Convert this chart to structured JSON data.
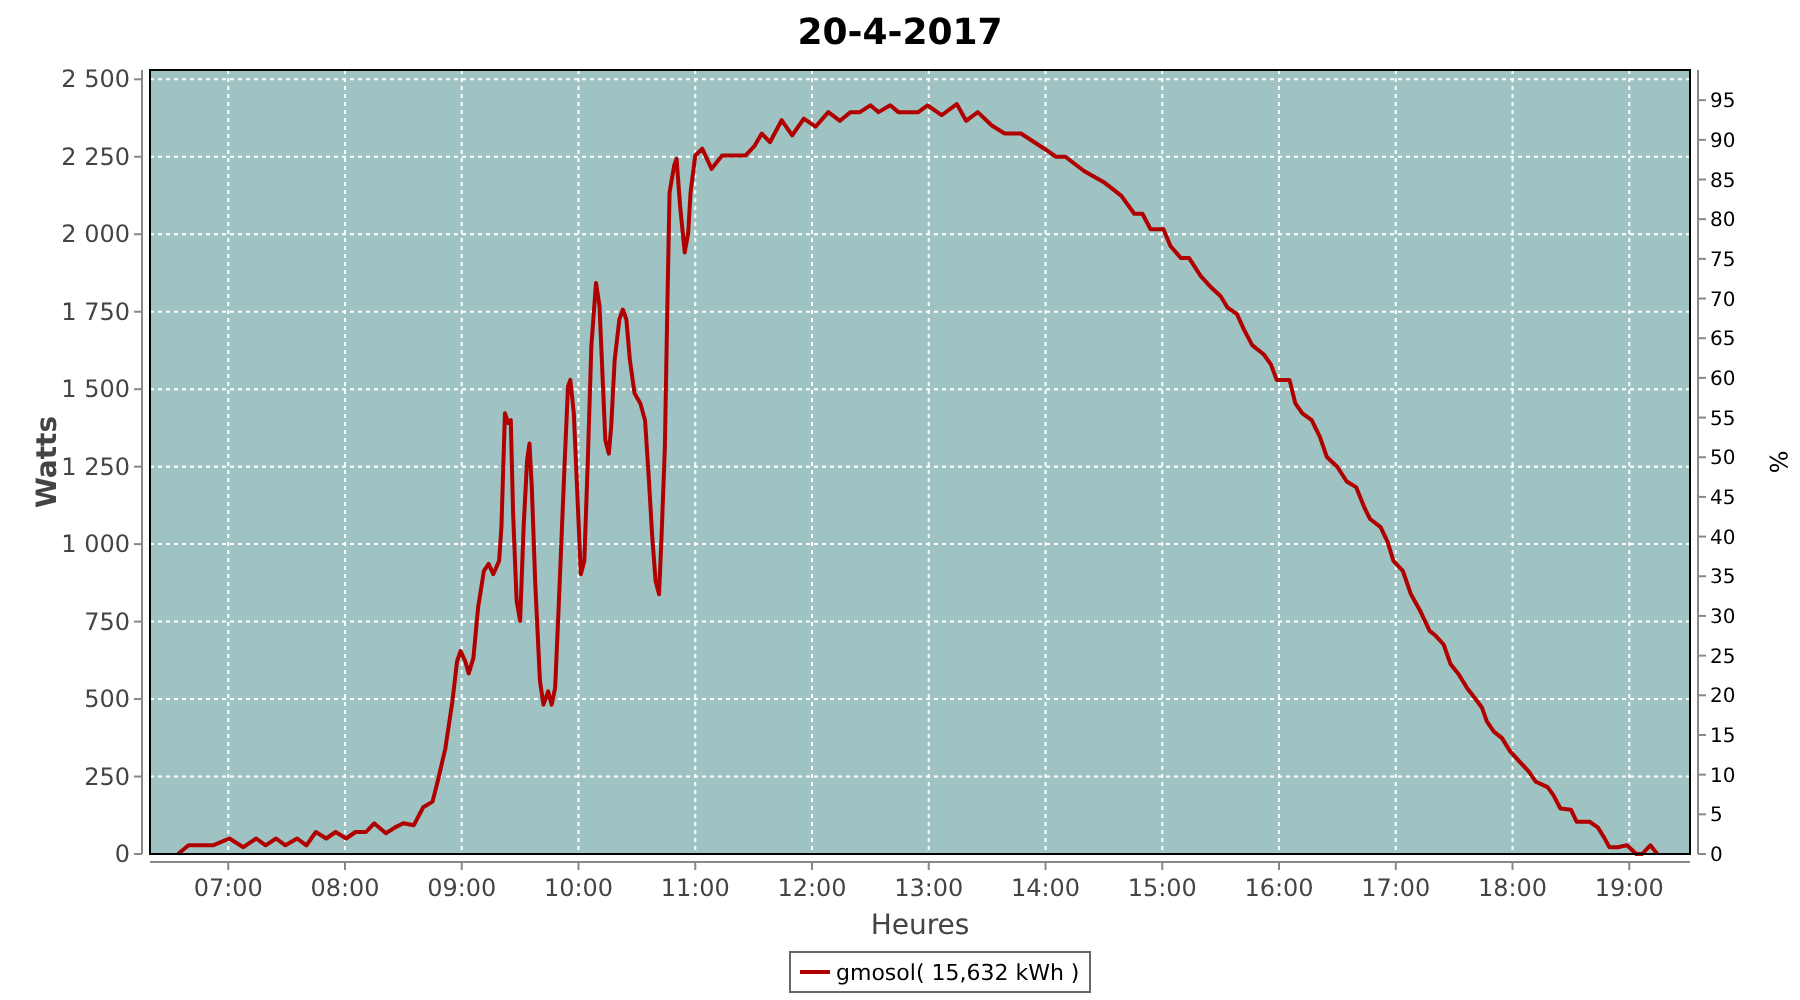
{
  "chart_data": {
    "type": "line",
    "title": "20-4-2017",
    "xlabel": "Heures",
    "ylabel": "Watts",
    "y2label": "%",
    "xlim": [
      6.33,
      19.52
    ],
    "xticks": [
      {
        "value": 7,
        "label": "07:00"
      },
      {
        "value": 8,
        "label": "08:00"
      },
      {
        "value": 9,
        "label": "09:00"
      },
      {
        "value": 10,
        "label": "10:00"
      },
      {
        "value": 11,
        "label": "11:00"
      },
      {
        "value": 12,
        "label": "12:00"
      },
      {
        "value": 13,
        "label": "13:00"
      },
      {
        "value": 14,
        "label": "14:00"
      },
      {
        "value": 15,
        "label": "15:00"
      },
      {
        "value": 16,
        "label": "16:00"
      },
      {
        "value": 17,
        "label": "17:00"
      },
      {
        "value": 18,
        "label": "18:00"
      },
      {
        "value": 19,
        "label": "19:00"
      }
    ],
    "ylim": [
      0,
      2530
    ],
    "yticks": [
      0,
      250,
      500,
      750,
      {
        "value": 1000,
        "label": "1 000"
      },
      {
        "value": 1250,
        "label": "1 250"
      },
      {
        "value": 1500,
        "label": "1 500"
      },
      {
        "value": 1750,
        "label": "1 750"
      },
      {
        "value": 2000,
        "label": "2 000"
      },
      {
        "value": 2250,
        "label": "2 250"
      },
      {
        "value": 2500,
        "label": "2 500"
      }
    ],
    "y2lim": [
      0,
      98.8
    ],
    "y2ticks": [
      0,
      5,
      10,
      15,
      20,
      25,
      30,
      35,
      40,
      45,
      50,
      55,
      60,
      65,
      70,
      75,
      80,
      85,
      90,
      95
    ],
    "grid": true,
    "legend": "bottom",
    "line_style": "solid",
    "marker": "none",
    "series": [
      {
        "name": "gmosol( 15,632 kWh )",
        "color": "#b00000",
        "x": [
          6.57,
          6.66,
          6.87,
          7.01,
          7.13,
          7.24,
          7.32,
          7.41,
          7.49,
          7.59,
          7.67,
          7.75,
          7.84,
          7.92,
          8.01,
          8.09,
          8.18,
          8.25,
          8.35,
          8.43,
          8.5,
          8.59,
          8.67,
          8.75,
          8.8,
          8.86,
          8.92,
          8.96,
          8.99,
          9.03,
          9.06,
          9.1,
          9.14,
          9.19,
          9.23,
          9.27,
          9.32,
          9.34,
          9.37,
          9.4,
          9.42,
          9.44,
          9.47,
          9.5,
          9.53,
          9.56,
          9.58,
          9.6,
          9.63,
          9.67,
          9.7,
          9.74,
          9.77,
          9.8,
          9.83,
          9.88,
          9.91,
          9.93,
          9.96,
          9.99,
          10.02,
          10.05,
          10.08,
          10.11,
          10.15,
          10.18,
          10.21,
          10.23,
          10.26,
          10.28,
          10.31,
          10.35,
          10.38,
          10.41,
          10.44,
          10.48,
          10.53,
          10.57,
          10.6,
          10.63,
          10.66,
          10.69,
          10.71,
          10.74,
          10.76,
          10.78,
          10.82,
          10.84,
          10.87,
          10.91,
          10.94,
          10.96,
          11.0,
          11.06,
          11.14,
          11.23,
          11.28,
          11.43,
          11.51,
          11.57,
          11.64,
          11.74,
          11.83,
          11.93,
          12.03,
          12.14,
          12.24,
          12.33,
          12.41,
          12.5,
          12.57,
          12.67,
          12.74,
          12.91,
          12.99,
          13.11,
          13.24,
          13.32,
          13.42,
          13.54,
          13.65,
          13.79,
          13.99,
          14.09,
          14.17,
          14.33,
          14.5,
          14.65,
          14.76,
          14.83,
          14.9,
          15.01,
          15.07,
          15.16,
          15.23,
          15.33,
          15.42,
          15.5,
          15.56,
          15.64,
          15.7,
          15.77,
          15.87,
          15.93,
          15.98,
          16.09,
          16.14,
          16.2,
          16.28,
          16.35,
          16.41,
          16.5,
          16.58,
          16.66,
          16.73,
          16.78,
          16.87,
          16.93,
          16.98,
          17.06,
          17.13,
          17.21,
          17.29,
          17.34,
          17.41,
          17.47,
          17.54,
          17.61,
          17.69,
          17.74,
          17.78,
          17.84,
          17.91,
          17.98,
          18.07,
          18.14,
          18.2,
          18.3,
          18.35,
          18.41,
          18.5,
          18.55,
          18.66,
          18.73,
          18.78,
          18.83,
          18.9,
          18.98,
          19.06,
          19.11,
          19.18,
          19.24
        ],
        "values": [
          0,
          28,
          28,
          50,
          22,
          50,
          28,
          50,
          28,
          50,
          28,
          71,
          50,
          71,
          50,
          71,
          71,
          99,
          67,
          86,
          99,
          93,
          151,
          169,
          244,
          341,
          493,
          622,
          655,
          622,
          583,
          633,
          795,
          914,
          936,
          903,
          946,
          1055,
          1422,
          1390,
          1400,
          1098,
          817,
          752,
          1055,
          1271,
          1325,
          1184,
          871,
          558,
          482,
          525,
          482,
          536,
          795,
          1249,
          1508,
          1530,
          1422,
          1163,
          903,
          946,
          1271,
          1638,
          1843,
          1768,
          1508,
          1336,
          1292,
          1379,
          1595,
          1725,
          1757,
          1725,
          1595,
          1487,
          1454,
          1400,
          1227,
          1033,
          882,
          838,
          1011,
          1314,
          1746,
          2135,
          2222,
          2243,
          2092,
          1941,
          2005,
          2135,
          2254,
          2276,
          2211,
          2254,
          2254,
          2254,
          2286,
          2325,
          2297,
          2368,
          2319,
          2373,
          2347,
          2394,
          2366,
          2394,
          2394,
          2416,
          2394,
          2416,
          2394,
          2394,
          2416,
          2384,
          2420,
          2366,
          2394,
          2351,
          2325,
          2325,
          2276,
          2250,
          2250,
          2204,
          2168,
          2124,
          2066,
          2066,
          2016,
          2016,
          1962,
          1923,
          1923,
          1865,
          1828,
          1800,
          1763,
          1742,
          1692,
          1642,
          1612,
          1580,
          1530,
          1530,
          1454,
          1422,
          1400,
          1346,
          1281,
          1249,
          1202,
          1184,
          1119,
          1081,
          1055,
          1007,
          946,
          914,
          838,
          784,
          720,
          705,
          676,
          612,
          579,
          536,
          497,
          471,
          428,
          395,
          374,
          331,
          294,
          266,
          233,
          216,
          190,
          147,
          143,
          104,
          104,
          86,
          56,
          22,
          22,
          28,
          0,
          0,
          28,
          0
        ]
      }
    ]
  }
}
